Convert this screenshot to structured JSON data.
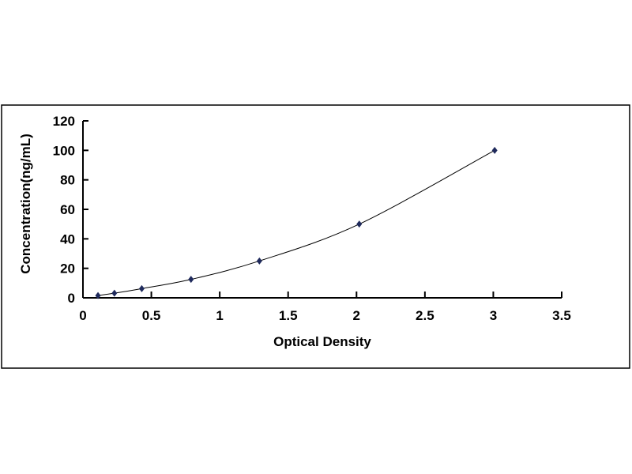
{
  "chart_data": {
    "type": "scatter",
    "title": "",
    "xlabel": "Optical Density",
    "ylabel": "Concentration(ng/mL)",
    "xlim": [
      0,
      3.5
    ],
    "ylim": [
      0,
      120
    ],
    "xticks": [
      "0",
      "0.5",
      "1",
      "1.5",
      "2",
      "2.5",
      "3",
      "3.5"
    ],
    "yticks": [
      "0",
      "20",
      "40",
      "60",
      "80",
      "100",
      "120"
    ],
    "grid": false,
    "legend": "none",
    "trendline": "smooth curve through points",
    "marker": "diamond",
    "color": "#1f2a5c",
    "x": [
      0.11,
      0.23,
      0.43,
      0.79,
      1.29,
      2.02,
      3.01
    ],
    "y": [
      1.56,
      3.12,
      6.25,
      12.5,
      25,
      50,
      100
    ]
  }
}
